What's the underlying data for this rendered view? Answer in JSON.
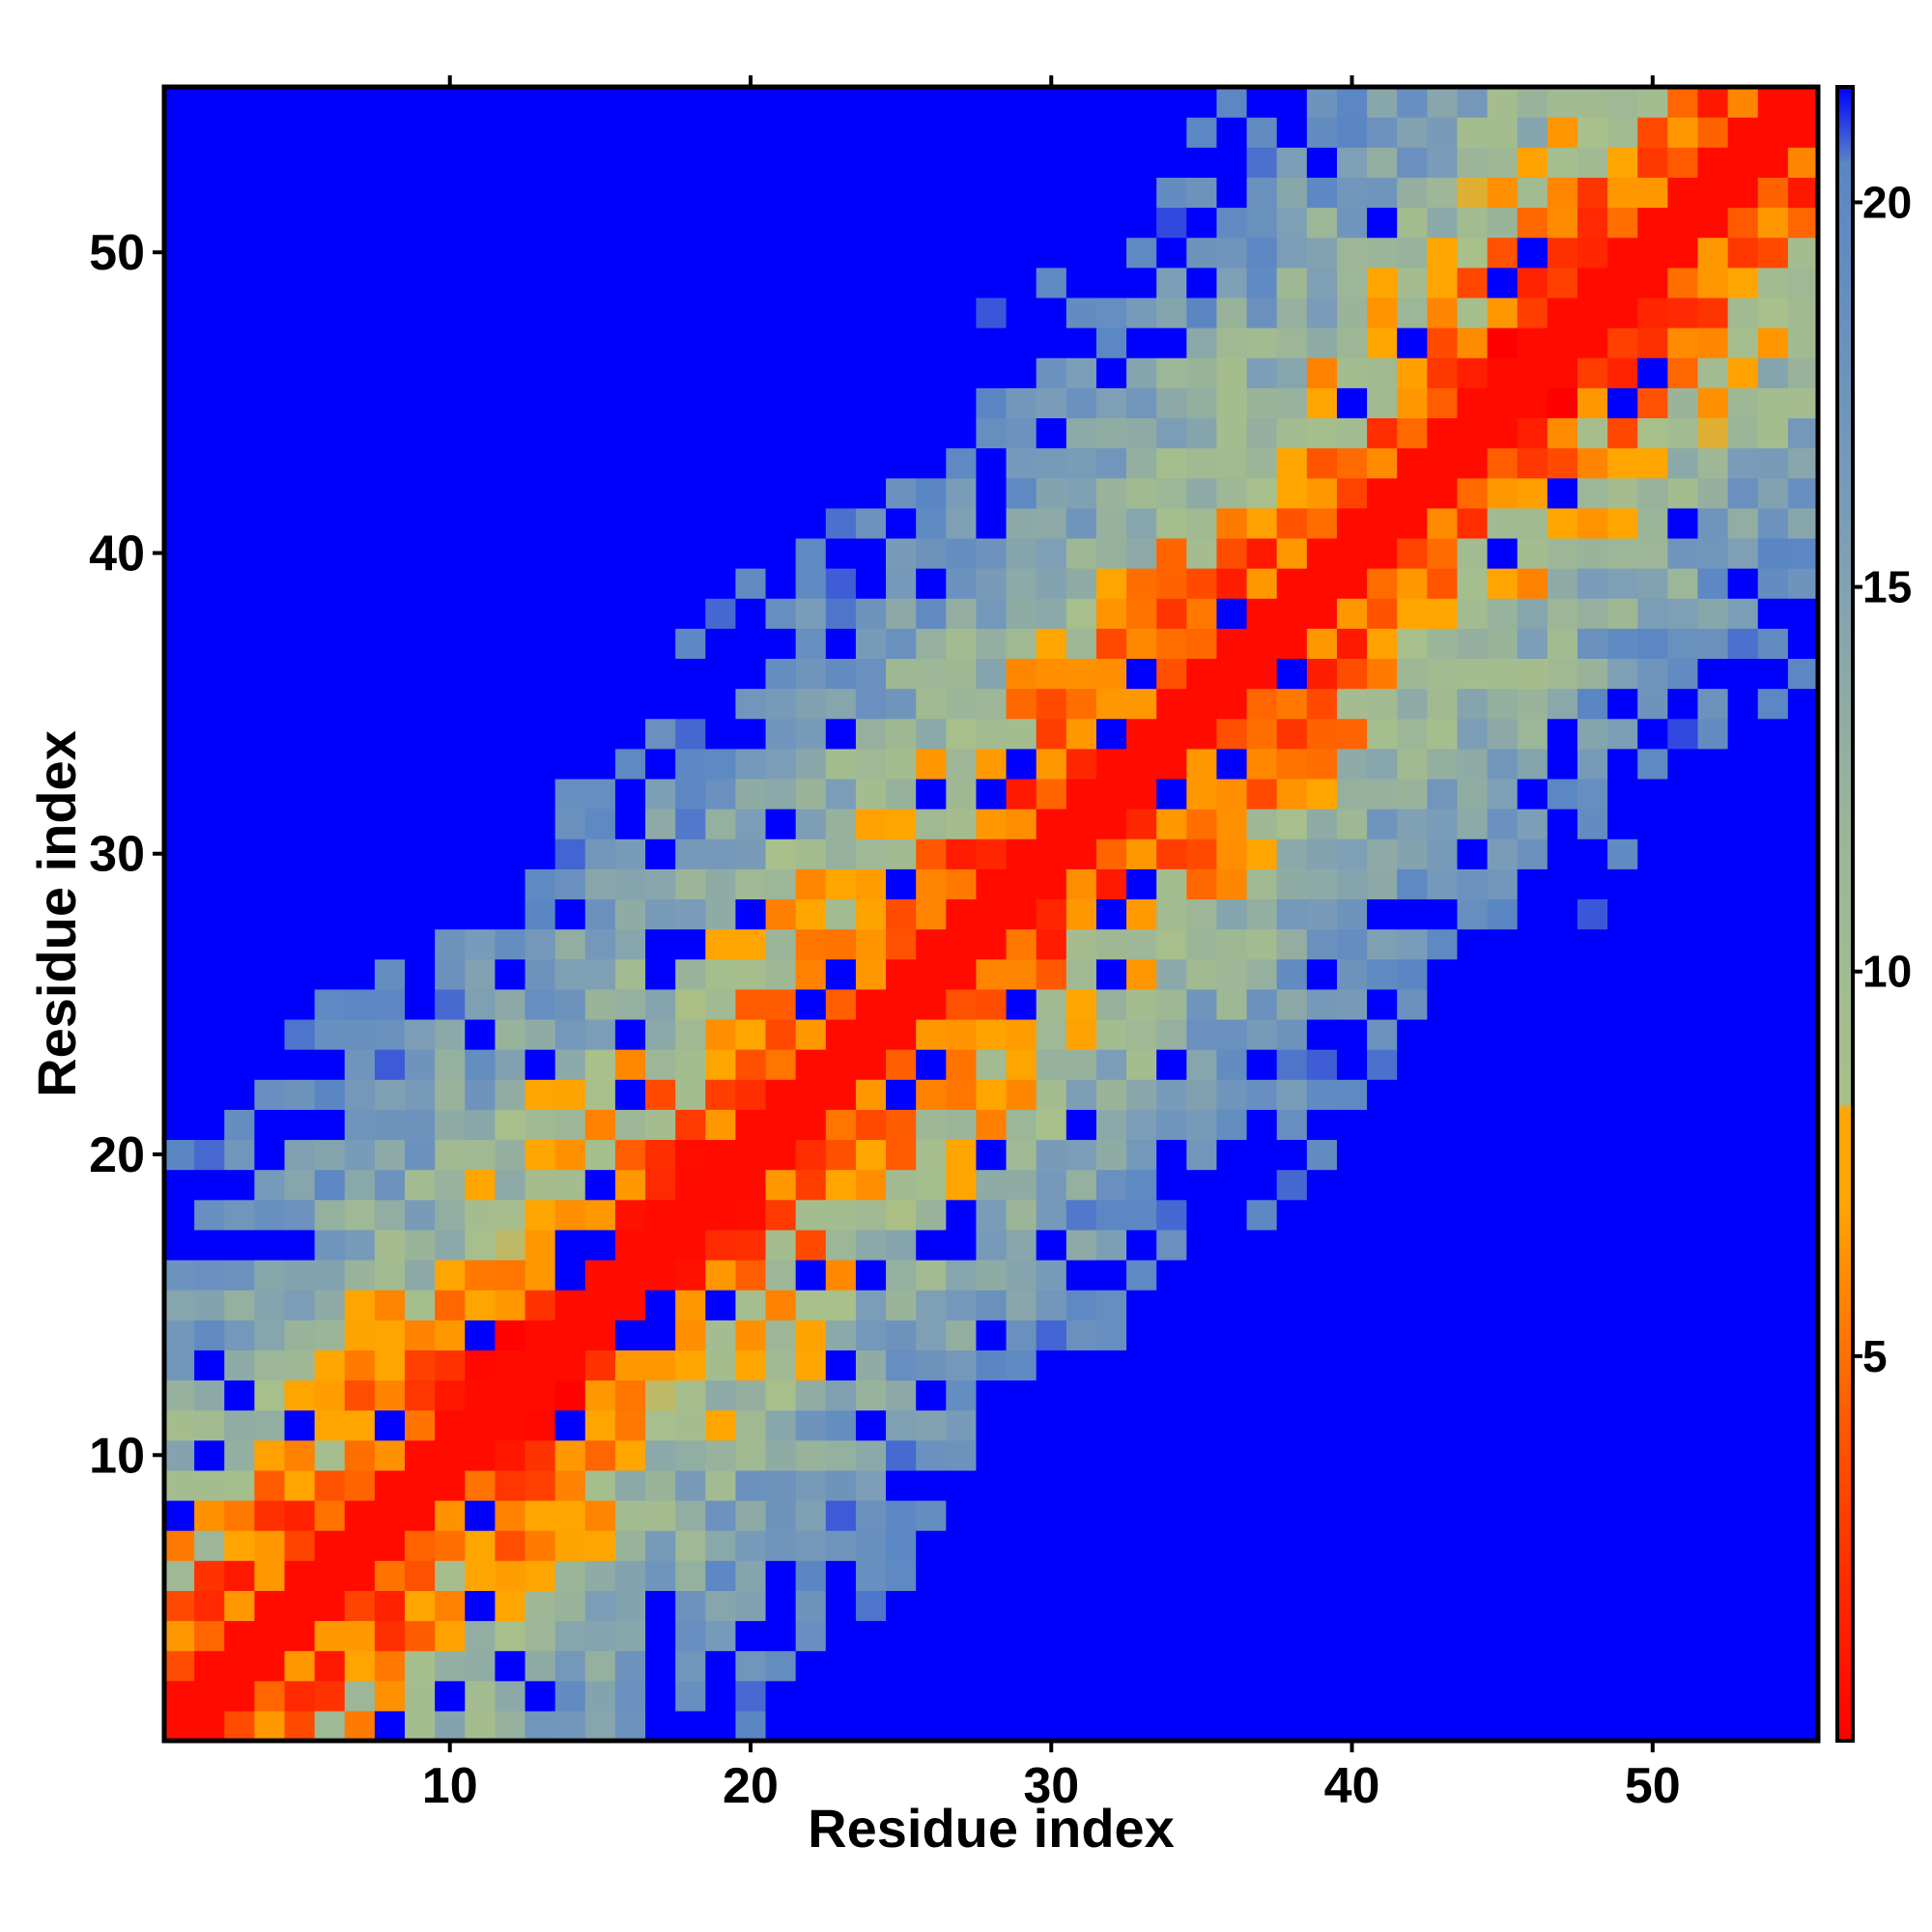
{
  "chart_data": {
    "type": "heatmap",
    "title": "",
    "xlabel": "Residue index",
    "ylabel": "Residue index",
    "n_residues": 55,
    "x_ticks": [
      10,
      20,
      30,
      40,
      50
    ],
    "y_ticks": [
      10,
      20,
      30,
      40,
      50
    ],
    "colorbar": {
      "ticks": [
        5,
        10,
        15,
        20
      ],
      "range": [
        0,
        21.5
      ],
      "colors": [
        {
          "value": 0,
          "color": "#ff0000"
        },
        {
          "value": 4,
          "color": "#ff5500"
        },
        {
          "value": 7,
          "color": "#ffa500"
        },
        {
          "value": 8.2,
          "color": "#ffa500"
        },
        {
          "value": 8.3,
          "color": "#a8c08a"
        },
        {
          "value": 12,
          "color": "#9ab49a"
        },
        {
          "value": 16,
          "color": "#7a9cb8"
        },
        {
          "value": 20.5,
          "color": "#5a86c4"
        },
        {
          "value": 21.5,
          "color": "#0000ff"
        }
      ]
    },
    "cutoff": 21,
    "description": "Symmetric contact/distance map; value grows with sequence separation |i-j| and saturates (blue) beyond cutoff."
  }
}
